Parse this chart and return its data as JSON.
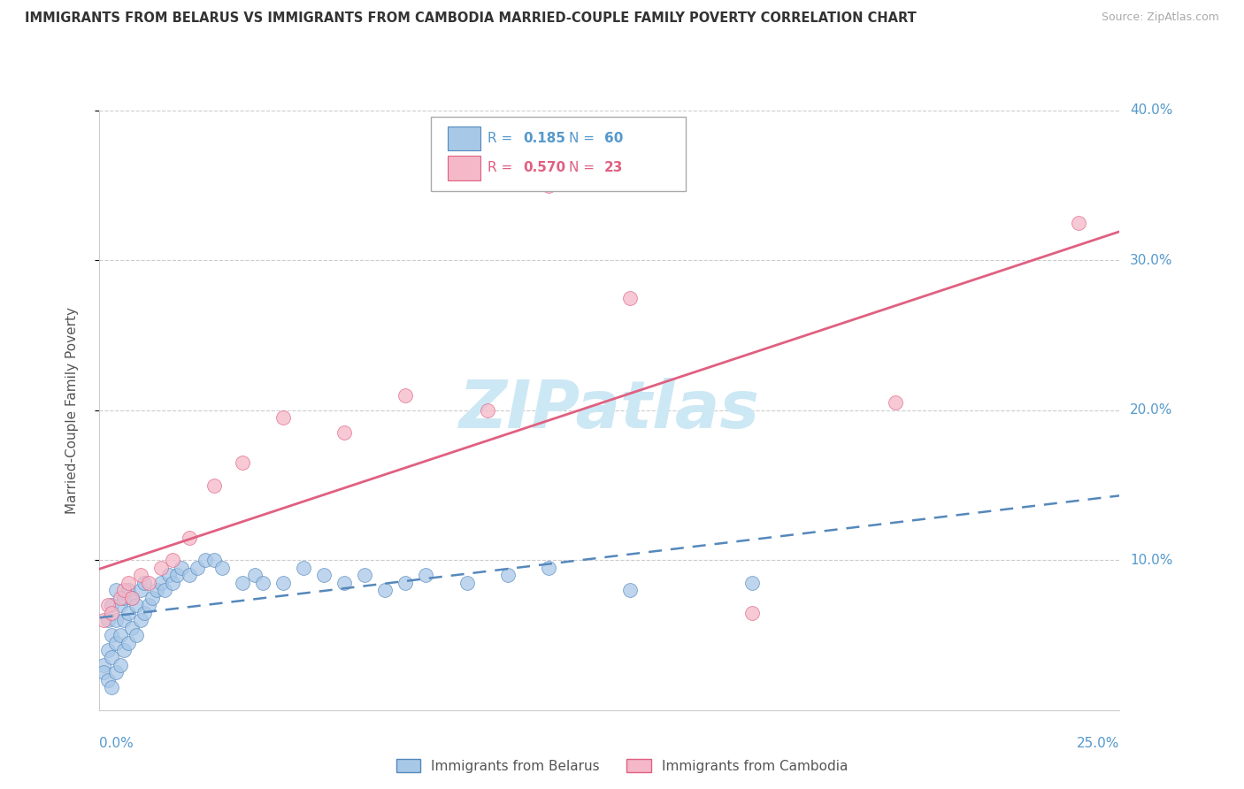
{
  "title": "IMMIGRANTS FROM BELARUS VS IMMIGRANTS FROM CAMBODIA MARRIED-COUPLE FAMILY POVERTY CORRELATION CHART",
  "source": "Source: ZipAtlas.com",
  "ylabel": "Married-Couple Family Poverty",
  "legend_label_blue": "Immigrants from Belarus",
  "legend_label_pink": "Immigrants from Cambodia",
  "R_blue": 0.185,
  "N_blue": 60,
  "R_pink": 0.57,
  "N_pink": 23,
  "xlim": [
    0.0,
    0.25
  ],
  "ylim": [
    0.0,
    0.4
  ],
  "ytick_positions": [
    0.1,
    0.2,
    0.3,
    0.4
  ],
  "ytick_labels": [
    "10.0%",
    "20.0%",
    "30.0%",
    "40.0%"
  ],
  "color_blue": "#a8c8e8",
  "color_pink": "#f4b8c8",
  "trendline_blue_color": "#5588bb",
  "trendline_pink_color": "#e06080",
  "watermark": "ZIPatlas",
  "watermark_color": "#cde8f5",
  "tick_label_color": "#5599cc",
  "blue_scatter_x": [
    0.001,
    0.001,
    0.002,
    0.002,
    0.002,
    0.003,
    0.003,
    0.003,
    0.003,
    0.004,
    0.004,
    0.004,
    0.004,
    0.005,
    0.005,
    0.005,
    0.006,
    0.006,
    0.006,
    0.007,
    0.007,
    0.007,
    0.008,
    0.008,
    0.009,
    0.009,
    0.01,
    0.01,
    0.011,
    0.011,
    0.012,
    0.013,
    0.014,
    0.015,
    0.016,
    0.017,
    0.018,
    0.019,
    0.02,
    0.022,
    0.024,
    0.026,
    0.028,
    0.03,
    0.035,
    0.038,
    0.04,
    0.045,
    0.05,
    0.055,
    0.06,
    0.065,
    0.07,
    0.075,
    0.08,
    0.09,
    0.1,
    0.11,
    0.13,
    0.16
  ],
  "blue_scatter_y": [
    0.03,
    0.025,
    0.02,
    0.04,
    0.06,
    0.015,
    0.035,
    0.05,
    0.07,
    0.025,
    0.045,
    0.06,
    0.08,
    0.03,
    0.05,
    0.07,
    0.04,
    0.06,
    0.075,
    0.045,
    0.065,
    0.08,
    0.055,
    0.075,
    0.05,
    0.07,
    0.06,
    0.08,
    0.065,
    0.085,
    0.07,
    0.075,
    0.08,
    0.085,
    0.08,
    0.09,
    0.085,
    0.09,
    0.095,
    0.09,
    0.095,
    0.1,
    0.1,
    0.095,
    0.085,
    0.09,
    0.085,
    0.085,
    0.095,
    0.09,
    0.085,
    0.09,
    0.08,
    0.085,
    0.09,
    0.085,
    0.09,
    0.095,
    0.08,
    0.085
  ],
  "pink_scatter_x": [
    0.001,
    0.002,
    0.003,
    0.005,
    0.006,
    0.007,
    0.008,
    0.01,
    0.012,
    0.015,
    0.018,
    0.022,
    0.028,
    0.035,
    0.045,
    0.06,
    0.075,
    0.095,
    0.11,
    0.13,
    0.16,
    0.195,
    0.24
  ],
  "pink_scatter_y": [
    0.06,
    0.07,
    0.065,
    0.075,
    0.08,
    0.085,
    0.075,
    0.09,
    0.085,
    0.095,
    0.1,
    0.115,
    0.15,
    0.165,
    0.195,
    0.185,
    0.21,
    0.2,
    0.35,
    0.275,
    0.065,
    0.205,
    0.325
  ]
}
